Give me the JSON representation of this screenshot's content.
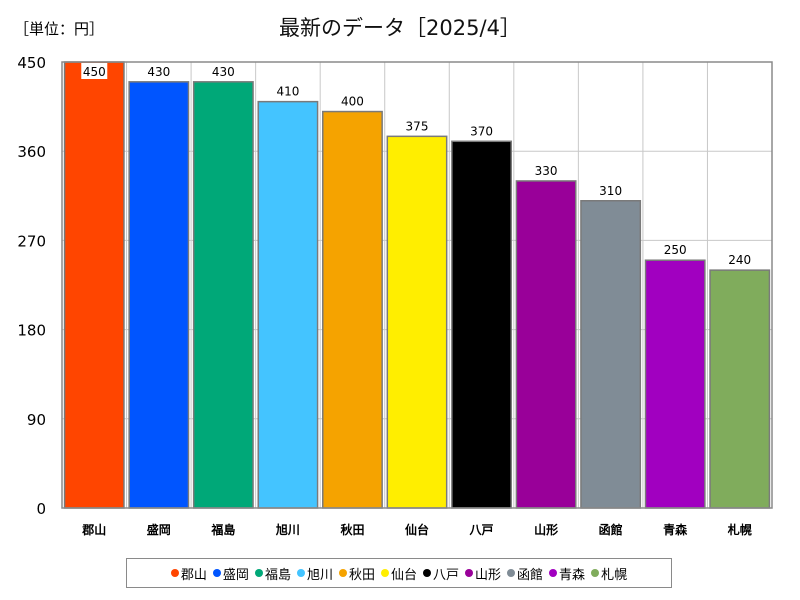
{
  "unit_label": "［単位：円］",
  "chart_data": {
    "type": "bar",
    "title": "最新のデータ［2025/4］",
    "categories": [
      "郡山",
      "盛岡",
      "福島",
      "旭川",
      "秋田",
      "仙台",
      "八戸",
      "山形",
      "函館",
      "青森",
      "札幌"
    ],
    "values": [
      450,
      430,
      430,
      410,
      400,
      375,
      370,
      330,
      310,
      250,
      240
    ],
    "value_labels": [
      "450",
      "430",
      "430",
      "410",
      "400",
      "375",
      "370",
      "330",
      "310",
      "250",
      "240"
    ],
    "colors": [
      "#ff4500",
      "#0055ff",
      "#00a878",
      "#44c4ff",
      "#f5a300",
      "#ffee00",
      "#000000",
      "#990099",
      "#808c96",
      "#a100c0",
      "#80ac5c"
    ],
    "ylim": [
      0,
      450
    ],
    "yticks": [
      0,
      90,
      180,
      270,
      360,
      450
    ],
    "ytick_labels": [
      "0",
      "90",
      "180",
      "270",
      "360",
      "450"
    ],
    "grid": true,
    "legend_position": "bottom"
  }
}
